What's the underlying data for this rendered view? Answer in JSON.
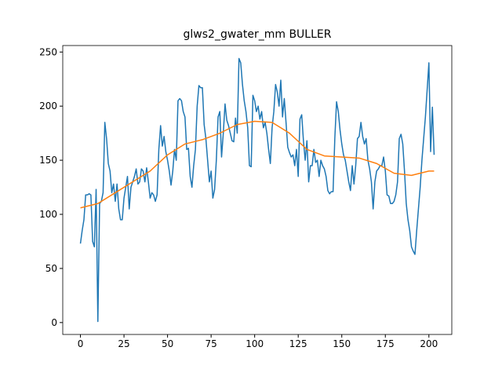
{
  "chart_data": {
    "type": "line",
    "title": "glws2_gwater_mm BULLER",
    "series": [
      {
        "color": "#1f77b4",
        "x": [
          0,
          1,
          2,
          3,
          4,
          5,
          6,
          7,
          8,
          9,
          10,
          11,
          12,
          13,
          14,
          15,
          16,
          17,
          18,
          19,
          20,
          21,
          22,
          23,
          24,
          25,
          26,
          27,
          28,
          29,
          30,
          31,
          32,
          33,
          34,
          35,
          36,
          37,
          38,
          39,
          40,
          41,
          42,
          43,
          44,
          45,
          46,
          47,
          48,
          49,
          50,
          51,
          52,
          53,
          54,
          55,
          56,
          57,
          58,
          59,
          60,
          61,
          62,
          63,
          64,
          65,
          66,
          67,
          68,
          69,
          70,
          71,
          72,
          73,
          74,
          75,
          76,
          77,
          78,
          79,
          80,
          81,
          82,
          83,
          84,
          85,
          86,
          87,
          88,
          89,
          90,
          91,
          92,
          93,
          94,
          95,
          96,
          97,
          98,
          99,
          100,
          101,
          102,
          103,
          104,
          105,
          106,
          107,
          108,
          109,
          110,
          111,
          112,
          113,
          114,
          115,
          116,
          117,
          118,
          119,
          120,
          121,
          122,
          123,
          124,
          125,
          126,
          127,
          128,
          129,
          130,
          131,
          132,
          133,
          134,
          135,
          136,
          137,
          138,
          139,
          140,
          141,
          142,
          143,
          144,
          145,
          146,
          147,
          148,
          149,
          150,
          151,
          152,
          153,
          154,
          155,
          156,
          157,
          158,
          159,
          160,
          161,
          162,
          163,
          164,
          165,
          166,
          167,
          168,
          169,
          170,
          171,
          172,
          173,
          174,
          175,
          176,
          177,
          178,
          179,
          180,
          181,
          182,
          183,
          184,
          185,
          186,
          187,
          188,
          189,
          190,
          191,
          192,
          193,
          194,
          195,
          196,
          197,
          198,
          199,
          200,
          201,
          202,
          203
        ],
        "values": [
          73,
          85,
          95,
          118,
          118,
          119,
          118,
          75,
          70,
          123,
          1,
          110,
          112,
          120,
          185,
          170,
          147,
          140,
          120,
          128,
          112,
          128,
          105,
          95,
          95,
          115,
          125,
          135,
          105,
          125,
          130,
          135,
          142,
          128,
          130,
          142,
          140,
          130,
          143,
          130,
          115,
          120,
          118,
          112,
          118,
          160,
          182,
          163,
          172,
          158,
          150,
          140,
          127,
          140,
          160,
          150,
          205,
          207,
          205,
          195,
          190,
          160,
          161,
          135,
          125,
          145,
          160,
          200,
          219,
          217,
          217,
          183,
          170,
          150,
          130,
          140,
          115,
          123,
          150,
          190,
          195,
          153,
          175,
          202,
          187,
          182,
          175,
          168,
          167,
          189,
          175,
          244,
          240,
          220,
          205,
          195,
          180,
          145,
          144,
          210,
          205,
          195,
          200,
          188,
          195,
          180,
          185,
          175,
          160,
          147,
          180,
          195,
          220,
          213,
          200,
          224,
          190,
          207,
          185,
          162,
          157,
          153,
          155,
          145,
          160,
          135,
          188,
          192,
          168,
          150,
          168,
          130,
          145,
          145,
          160,
          148,
          150,
          135,
          150,
          145,
          142,
          135,
          122,
          119,
          121,
          121,
          170,
          204,
          195,
          178,
          165,
          155,
          150,
          140,
          130,
          122,
          145,
          128,
          145,
          170,
          172,
          185,
          172,
          165,
          170,
          150,
          142,
          130,
          105,
          130,
          140,
          142,
          145,
          145,
          153,
          140,
          118,
          117,
          110,
          110,
          112,
          118,
          130,
          170,
          174,
          165,
          140,
          110,
          95,
          85,
          70,
          66,
          63,
          85,
          105,
          125,
          150,
          170,
          190,
          215,
          240,
          158,
          199,
          155
        ]
      },
      {
        "color": "#ff7f0e",
        "x": [
          0,
          10,
          20,
          30,
          40,
          50,
          60,
          70,
          80,
          90,
          100,
          110,
          120,
          130,
          140,
          150,
          160,
          170,
          180,
          190,
          200,
          203
        ],
        "values": [
          106,
          110,
          120,
          130,
          140,
          155,
          165,
          169,
          175,
          183,
          186,
          185,
          175,
          160,
          154,
          153,
          152,
          147,
          138,
          136,
          140,
          140
        ]
      }
    ],
    "xlim": [
      -10.15,
      213.15
    ],
    "xticks": [
      0,
      25,
      50,
      75,
      100,
      125,
      150,
      175,
      200
    ],
    "ylim": [
      -11,
      256
    ],
    "yticks": [
      0,
      50,
      100,
      150,
      200,
      250
    ]
  }
}
